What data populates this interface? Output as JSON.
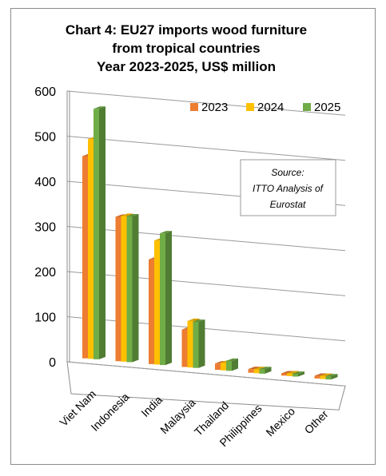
{
  "chart_data": {
    "type": "bar",
    "title_lines": [
      "Chart 4: EU27 imports wood furniture",
      "from tropical countries",
      "Year 2023-2025, US$ million"
    ],
    "categories": [
      "Viet Nam",
      "Indonesia",
      "India",
      "Malaysia",
      "Thailand",
      "Philippines",
      "Mexico",
      "Other"
    ],
    "series": [
      {
        "name": "2023",
        "values": [
          448,
          320,
          232,
          83,
          14,
          8,
          5,
          6
        ]
      },
      {
        "name": "2024",
        "values": [
          487,
          323,
          275,
          103,
          17,
          9,
          6,
          7
        ]
      },
      {
        "name": "2025",
        "values": [
          555,
          323,
          292,
          102,
          22,
          10,
          6,
          7
        ]
      }
    ],
    "ylim": [
      0,
      600
    ],
    "yticks": [
      0,
      100,
      200,
      300,
      400,
      500,
      600
    ],
    "grid": true,
    "legend_position": "top-right",
    "colors": {
      "2023": "#ED7D31",
      "2024": "#FFC000",
      "2025": "#70AD47"
    },
    "annotation": {
      "lines": [
        "Source:",
        "ITTO Analysis of",
        "Eurostat"
      ]
    }
  }
}
